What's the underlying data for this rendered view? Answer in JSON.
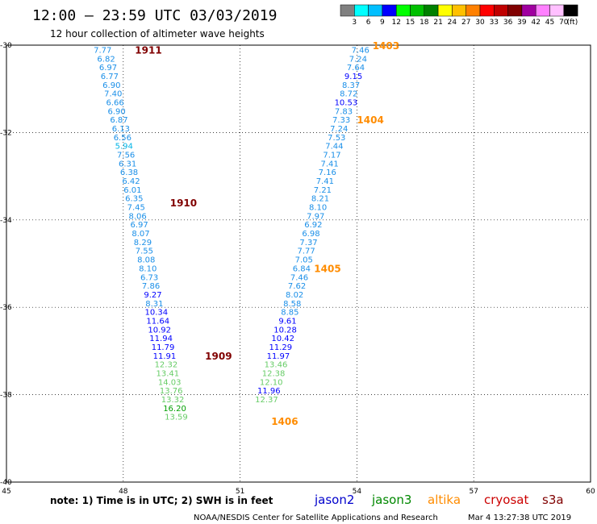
{
  "header": {
    "title": "12:00 — 23:59 UTC 03/03/2019",
    "subtitle": "12 hour collection of altimeter wave heights"
  },
  "color_scale": {
    "colors": [
      "#808080",
      "#00ffff",
      "#00bfff",
      "#0000ff",
      "#00ff00",
      "#00c000",
      "#008000",
      "#ffff00",
      "#ffc000",
      "#ff8000",
      "#ff0000",
      "#c00000",
      "#800000",
      "#a000a0",
      "#ff80ff",
      "#ffc0ff",
      "#000000"
    ],
    "labels": [
      "3",
      "6",
      "9",
      "12",
      "15",
      "18",
      "21",
      "24",
      "27",
      "30",
      "33",
      "36",
      "39",
      "42",
      "45",
      "70",
      "(ft)"
    ]
  },
  "footer": {
    "note": "note:  1) Time is in UTC;  2) SWH is in feet",
    "missions": [
      {
        "name": "jason2",
        "color": "#0000cc"
      },
      {
        "name": "jason3",
        "color": "#008800"
      },
      {
        "name": "altika",
        "color": "#ff8c00"
      },
      {
        "name": "cryosat",
        "color": "#cc0000"
      },
      {
        "name": "s3a",
        "color": "#800000"
      }
    ],
    "credit": "NOAA/NESDIS Center for Satellite Applications and Research",
    "timestamp": "Mar  4 13:27:38 UTC 2019"
  },
  "chart_data": {
    "type": "scatter",
    "title": "12:00 — 23:59 UTC 03/03/2019",
    "subtitle": "12 hour collection of altimeter wave heights",
    "xlabel": "",
    "ylabel": "",
    "xlim": [
      45,
      60
    ],
    "ylim": [
      -40,
      -30
    ],
    "x_ticks": [
      45,
      48,
      51,
      54,
      57,
      60
    ],
    "y_ticks": [
      -30,
      -32,
      -34,
      -36,
      -38,
      -40
    ],
    "units": "ft",
    "passes": [
      {
        "label": "1911",
        "label_lon": 48.3,
        "label_lat": -30.1,
        "color": "#800000"
      },
      {
        "label": "1910",
        "label_lon": 49.2,
        "label_lat": -33.6,
        "color": "#800000"
      },
      {
        "label": "1909",
        "label_lon": 50.1,
        "label_lat": -37.1,
        "color": "#800000"
      },
      {
        "label": "1403",
        "label_lon": 54.4,
        "label_lat": -30.0,
        "color": "#ff8c00"
      },
      {
        "label": "1404",
        "label_lon": 54.0,
        "label_lat": -31.7,
        "color": "#ff8c00"
      },
      {
        "label": "1405",
        "label_lon": 52.9,
        "label_lat": -35.1,
        "color": "#ff8c00"
      },
      {
        "label": "1406",
        "label_lon": 51.8,
        "label_lat": -38.6,
        "color": "#ff8c00"
      }
    ],
    "series": [
      {
        "name": "pass-1909-1911",
        "points": [
          {
            "lon": 47.47,
            "lat": -30.1,
            "v": "7.77"
          },
          {
            "lon": 47.56,
            "lat": -30.3,
            "v": "6.82"
          },
          {
            "lon": 47.61,
            "lat": -30.5,
            "v": "6.97"
          },
          {
            "lon": 47.65,
            "lat": -30.7,
            "v": "6.77"
          },
          {
            "lon": 47.7,
            "lat": -30.9,
            "v": "6.90"
          },
          {
            "lon": 47.74,
            "lat": -31.1,
            "v": "7.40"
          },
          {
            "lon": 47.79,
            "lat": -31.3,
            "v": "6.66"
          },
          {
            "lon": 47.83,
            "lat": -31.5,
            "v": "6.90"
          },
          {
            "lon": 47.89,
            "lat": -31.7,
            "v": "6.87"
          },
          {
            "lon": 47.94,
            "lat": -31.9,
            "v": "6.13"
          },
          {
            "lon": 47.98,
            "lat": -32.1,
            "v": "6.56"
          },
          {
            "lon": 48.02,
            "lat": -32.3,
            "v": "5.94"
          },
          {
            "lon": 48.07,
            "lat": -32.5,
            "v": "7.56"
          },
          {
            "lon": 48.11,
            "lat": -32.7,
            "v": "6.31"
          },
          {
            "lon": 48.15,
            "lat": -32.9,
            "v": "6.38"
          },
          {
            "lon": 48.2,
            "lat": -33.1,
            "v": "6.42"
          },
          {
            "lon": 48.24,
            "lat": -33.3,
            "v": "6.01"
          },
          {
            "lon": 48.28,
            "lat": -33.5,
            "v": "6.35"
          },
          {
            "lon": 48.33,
            "lat": -33.7,
            "v": "7.45"
          },
          {
            "lon": 48.37,
            "lat": -33.9,
            "v": "8.06"
          },
          {
            "lon": 48.41,
            "lat": -34.1,
            "v": "6.97"
          },
          {
            "lon": 48.45,
            "lat": -34.3,
            "v": "8.07"
          },
          {
            "lon": 48.5,
            "lat": -34.5,
            "v": "8.29"
          },
          {
            "lon": 48.54,
            "lat": -34.7,
            "v": "7.55"
          },
          {
            "lon": 48.59,
            "lat": -34.9,
            "v": "8.08"
          },
          {
            "lon": 48.63,
            "lat": -35.1,
            "v": "8.10"
          },
          {
            "lon": 48.67,
            "lat": -35.3,
            "v": "6.73"
          },
          {
            "lon": 48.71,
            "lat": -35.5,
            "v": "7.86"
          },
          {
            "lon": 48.76,
            "lat": -35.7,
            "v": "9.27"
          },
          {
            "lon": 48.8,
            "lat": -35.9,
            "v": "8.31"
          },
          {
            "lon": 48.85,
            "lat": -36.1,
            "v": "10.34"
          },
          {
            "lon": 48.89,
            "lat": -36.3,
            "v": "11.64"
          },
          {
            "lon": 48.93,
            "lat": -36.5,
            "v": "10.92"
          },
          {
            "lon": 48.97,
            "lat": -36.7,
            "v": "11.94"
          },
          {
            "lon": 49.02,
            "lat": -36.9,
            "v": "11.79"
          },
          {
            "lon": 49.06,
            "lat": -37.1,
            "v": "11.91"
          },
          {
            "lon": 49.1,
            "lat": -37.3,
            "v": "12.32"
          },
          {
            "lon": 49.14,
            "lat": -37.5,
            "v": "13.41"
          },
          {
            "lon": 49.19,
            "lat": -37.7,
            "v": "14.03"
          },
          {
            "lon": 49.23,
            "lat": -37.9,
            "v": "13.76"
          },
          {
            "lon": 49.27,
            "lat": -38.1,
            "v": "13.32"
          },
          {
            "lon": 49.32,
            "lat": -38.3,
            "v": "16.20"
          },
          {
            "lon": 49.36,
            "lat": -38.5,
            "v": "13.59"
          }
        ]
      },
      {
        "name": "pass-1403-1406",
        "points": [
          {
            "lon": 54.09,
            "lat": -30.1,
            "v": "7.46"
          },
          {
            "lon": 54.03,
            "lat": -30.3,
            "v": "7.24"
          },
          {
            "lon": 53.97,
            "lat": -30.5,
            "v": "7.64"
          },
          {
            "lon": 53.91,
            "lat": -30.7,
            "v": "9.15"
          },
          {
            "lon": 53.85,
            "lat": -30.9,
            "v": "8.37"
          },
          {
            "lon": 53.79,
            "lat": -31.1,
            "v": "8.72"
          },
          {
            "lon": 53.72,
            "lat": -31.3,
            "v": "10.53"
          },
          {
            "lon": 53.66,
            "lat": -31.5,
            "v": "7.83"
          },
          {
            "lon": 53.6,
            "lat": -31.7,
            "v": "7.33"
          },
          {
            "lon": 53.54,
            "lat": -31.9,
            "v": "7.24"
          },
          {
            "lon": 53.48,
            "lat": -32.1,
            "v": "7.53"
          },
          {
            "lon": 53.42,
            "lat": -32.3,
            "v": "7.44"
          },
          {
            "lon": 53.36,
            "lat": -32.5,
            "v": "7.17"
          },
          {
            "lon": 53.3,
            "lat": -32.7,
            "v": "7.41"
          },
          {
            "lon": 53.24,
            "lat": -32.9,
            "v": "7.16"
          },
          {
            "lon": 53.18,
            "lat": -33.1,
            "v": "7.41"
          },
          {
            "lon": 53.12,
            "lat": -33.3,
            "v": "7.21"
          },
          {
            "lon": 53.06,
            "lat": -33.5,
            "v": "8.21"
          },
          {
            "lon": 53.0,
            "lat": -33.7,
            "v": "8.10"
          },
          {
            "lon": 52.94,
            "lat": -33.9,
            "v": "7.97"
          },
          {
            "lon": 52.88,
            "lat": -34.1,
            "v": "6.92"
          },
          {
            "lon": 52.82,
            "lat": -34.3,
            "v": "6.98"
          },
          {
            "lon": 52.76,
            "lat": -34.5,
            "v": "7.37"
          },
          {
            "lon": 52.7,
            "lat": -34.7,
            "v": "7.77"
          },
          {
            "lon": 52.64,
            "lat": -34.9,
            "v": "7.05"
          },
          {
            "lon": 52.58,
            "lat": -35.1,
            "v": "6.84"
          },
          {
            "lon": 52.52,
            "lat": -35.3,
            "v": "7.46"
          },
          {
            "lon": 52.46,
            "lat": -35.5,
            "v": "7.62"
          },
          {
            "lon": 52.4,
            "lat": -35.7,
            "v": "8.02"
          },
          {
            "lon": 52.34,
            "lat": -35.9,
            "v": "8.58"
          },
          {
            "lon": 52.28,
            "lat": -36.1,
            "v": "8.85"
          },
          {
            "lon": 52.22,
            "lat": -36.3,
            "v": "9.61"
          },
          {
            "lon": 52.16,
            "lat": -36.5,
            "v": "10.28"
          },
          {
            "lon": 52.1,
            "lat": -36.7,
            "v": "10.42"
          },
          {
            "lon": 52.04,
            "lat": -36.9,
            "v": "11.29"
          },
          {
            "lon": 51.98,
            "lat": -37.1,
            "v": "11.97"
          },
          {
            "lon": 51.92,
            "lat": -37.3,
            "v": "13.46"
          },
          {
            "lon": 51.86,
            "lat": -37.5,
            "v": "12.38"
          },
          {
            "lon": 51.8,
            "lat": -37.7,
            "v": "12.10"
          },
          {
            "lon": 51.74,
            "lat": -37.9,
            "v": "11.96"
          },
          {
            "lon": 51.68,
            "lat": -38.1,
            "v": "12.37"
          }
        ]
      }
    ]
  }
}
